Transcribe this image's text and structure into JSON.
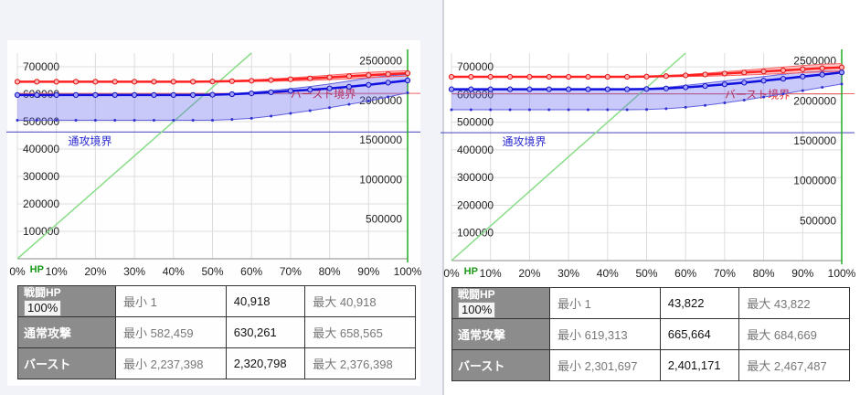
{
  "colors": {
    "normal": "#1010e0",
    "burst": "#ff2020",
    "hp": "#88dd88",
    "grid": "#dddddd",
    "hdr": "#8c8c8c"
  },
  "chart_data": [
    {
      "type": "line",
      "x_tick_labels": [
        "0%",
        "10%",
        "20%",
        "30%",
        "40%",
        "50%",
        "60%",
        "70%",
        "80%",
        "90%",
        "100%"
      ],
      "hp_label": "HP",
      "y_left_ticks": [
        "700000",
        "600000",
        "500000",
        "400000",
        "300000",
        "200000",
        "100000"
      ],
      "y_right_ticks": [
        "2500000",
        "2000000",
        "1500000",
        "1000000",
        "500000"
      ],
      "y_left_range": [
        0,
        750000
      ],
      "y_right_range": [
        0,
        2600000
      ],
      "normal_threshold": 462000,
      "burst_threshold": 2090000,
      "normal_threshold_label": "通攻境界",
      "burst_threshold_label": "バースト境界",
      "x": [
        0,
        5,
        10,
        15,
        20,
        25,
        30,
        35,
        40,
        45,
        50,
        55,
        60,
        65,
        70,
        75,
        80,
        85,
        90,
        95,
        100
      ],
      "normal_cur": [
        597000,
        597000,
        597000,
        597000,
        597000,
        597000,
        597000,
        597000,
        597000,
        597000,
        598000,
        600000,
        603000,
        607000,
        612000,
        616000,
        621000,
        627000,
        634000,
        642000,
        650000
      ],
      "normal_min": [
        505000,
        505000,
        505000,
        505000,
        505000,
        505000,
        505000,
        505000,
        505000,
        505000,
        505000,
        508000,
        512000,
        520000,
        530000,
        540000,
        551000,
        563000,
        575000,
        590000,
        605000
      ],
      "normal_max": [
        597000,
        597000,
        597000,
        597000,
        597000,
        597000,
        597000,
        597000,
        597000,
        597000,
        598000,
        602000,
        607000,
        613000,
        620000,
        628000,
        637000,
        648000,
        659000,
        667000,
        672000
      ],
      "burst_cur": [
        2237398,
        2237398,
        2237398,
        2237398,
        2237398,
        2237398,
        2237398,
        2237398,
        2237398,
        2237398,
        2240000,
        2244000,
        2250000,
        2258000,
        2268000,
        2280000,
        2293000,
        2307000,
        2320000,
        2333000,
        2345000
      ],
      "burst_max": [
        2237398,
        2237398,
        2237398,
        2237398,
        2237398,
        2237398,
        2237398,
        2237398,
        2237398,
        2237398,
        2242000,
        2250000,
        2260000,
        2272000,
        2287000,
        2303000,
        2320000,
        2338000,
        2356000,
        2368000,
        2376398
      ],
      "burst_min": [
        2237398,
        2237398,
        2237398,
        2237398,
        2237398,
        2237398,
        2237398,
        2237398,
        2237398,
        2237398,
        2237398,
        2238000,
        2240000,
        2243000,
        2248000,
        2255000,
        2264000,
        2275000,
        2288000,
        2300000,
        2310000
      ],
      "hp_line": [
        [
          0,
          0
        ],
        [
          60,
          750000
        ]
      ],
      "hp_marker": 100
    },
    {
      "type": "line",
      "x_tick_labels": [
        "0%",
        "10%",
        "20%",
        "30%",
        "40%",
        "50%",
        "60%",
        "70%",
        "80%",
        "90%",
        "100%"
      ],
      "hp_label": "HP",
      "y_left_ticks": [
        "700000",
        "600000",
        "500000",
        "400000",
        "300000",
        "200000",
        "100000"
      ],
      "y_right_ticks": [
        "2500000",
        "2000000",
        "1500000",
        "1000000",
        "500000"
      ],
      "y_left_range": [
        0,
        750000
      ],
      "y_right_range": [
        0,
        2600000
      ],
      "normal_threshold": 462000,
      "burst_threshold": 2090000,
      "normal_threshold_label": "通攻境界",
      "burst_threshold_label": "バースト境界",
      "x": [
        0,
        5,
        10,
        15,
        20,
        25,
        30,
        35,
        40,
        45,
        50,
        55,
        60,
        65,
        70,
        75,
        80,
        85,
        90,
        95,
        100
      ],
      "normal_cur": [
        619000,
        619000,
        619000,
        619000,
        619000,
        619000,
        619000,
        619000,
        619000,
        619000,
        620000,
        622000,
        626000,
        631000,
        637000,
        643000,
        650000,
        657000,
        665000,
        672000,
        680000
      ],
      "normal_min": [
        545000,
        545000,
        545000,
        545000,
        545000,
        545000,
        545000,
        545000,
        545000,
        545000,
        546000,
        549000,
        554000,
        561000,
        570000,
        580000,
        591000,
        602000,
        614000,
        626000,
        638000
      ],
      "normal_max": [
        619000,
        619000,
        619000,
        619000,
        619000,
        619000,
        619000,
        619000,
        619000,
        619000,
        621000,
        626000,
        633000,
        641000,
        649000,
        657000,
        665000,
        673000,
        680000,
        684000,
        685000
      ],
      "burst_cur": [
        2301697,
        2301697,
        2301697,
        2301697,
        2301697,
        2301697,
        2301697,
        2301697,
        2301697,
        2301697,
        2305000,
        2311000,
        2320000,
        2331000,
        2343000,
        2356000,
        2369000,
        2383000,
        2397000,
        2410000,
        2420000
      ],
      "burst_max": [
        2301697,
        2301697,
        2301697,
        2301697,
        2301697,
        2301697,
        2301697,
        2301697,
        2301697,
        2301697,
        2306000,
        2316000,
        2330000,
        2347000,
        2365000,
        2384000,
        2404000,
        2424000,
        2444000,
        2459000,
        2467487
      ],
      "burst_min": [
        2301697,
        2301697,
        2301697,
        2301697,
        2301697,
        2301697,
        2301697,
        2301697,
        2301697,
        2301697,
        2301697,
        2303000,
        2306000,
        2310000,
        2316000,
        2324000,
        2333000,
        2343000,
        2354000,
        2364000,
        2372000
      ],
      "hp_line": [
        [
          0,
          0
        ],
        [
          60,
          750000
        ]
      ],
      "hp_marker": 100
    }
  ],
  "tables": [
    {
      "hp_header": "戦闘HP",
      "hp_button": "100%",
      "hp_min": "最小 1",
      "hp_cur": "40,918",
      "hp_max": "最大 40,918",
      "normal_header": "通常攻撃",
      "normal_min": "最小 582,459",
      "normal_cur": "630,261",
      "normal_max": "最大 658,565",
      "burst_header": "バースト",
      "burst_min": "最小 2,237,398",
      "burst_cur": "2,320,798",
      "burst_max": "最大 2,376,398"
    },
    {
      "hp_header": "戦闘HP",
      "hp_button": "100%",
      "hp_min": "最小 1",
      "hp_cur": "43,822",
      "hp_max": "最大 43,822",
      "normal_header": "通常攻撃",
      "normal_min": "最小 619,313",
      "normal_cur": "665,664",
      "normal_max": "最大 684,669",
      "burst_header": "バースト",
      "burst_min": "最小 2,301,697",
      "burst_cur": "2,401,171",
      "burst_max": "最大 2,467,487"
    }
  ]
}
